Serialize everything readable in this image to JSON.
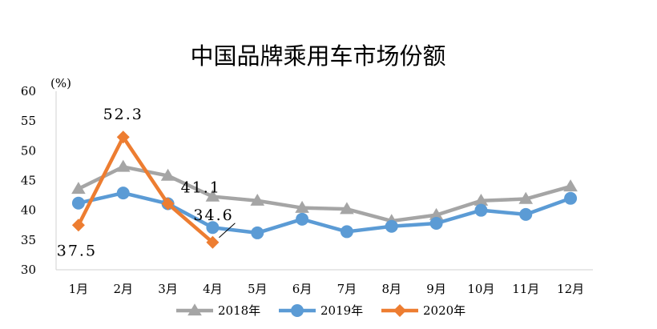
{
  "chart_data": {
    "type": "line",
    "title": "中国品牌乘用车市场份额",
    "ylabel": "(%)",
    "xlabel": "",
    "ylim": [
      30,
      60
    ],
    "yticks": [
      "60",
      "55",
      "50",
      "45",
      "40",
      "35",
      "30"
    ],
    "categories": [
      "1月",
      "2月",
      "3月",
      "4月",
      "5月",
      "6月",
      "7月",
      "8月",
      "9月",
      "10月",
      "11月",
      "12月"
    ],
    "grid": false,
    "legend_position": "bottom",
    "series": [
      {
        "name": "2018年",
        "color": "#a5a5a5",
        "marker": "triangle",
        "values": [
          43.6,
          47.3,
          45.8,
          42.3,
          41.6,
          40.4,
          40.2,
          38.2,
          39.2,
          41.6,
          41.9,
          44.0
        ]
      },
      {
        "name": "2019年",
        "color": "#5b9bd5",
        "marker": "circle",
        "values": [
          41.2,
          42.9,
          41.1,
          37.1,
          36.2,
          38.5,
          36.4,
          37.3,
          37.8,
          40.0,
          39.3,
          42.0
        ]
      },
      {
        "name": "2020年",
        "color": "#ed7d31",
        "marker": "diamond",
        "values": [
          37.5,
          52.3,
          41.1,
          34.6,
          null,
          null,
          null,
          null,
          null,
          null,
          null,
          null
        ]
      }
    ],
    "data_labels": [
      {
        "text": "37.5",
        "series": 2,
        "index": 0
      },
      {
        "text": "52.3",
        "series": 2,
        "index": 1
      },
      {
        "text": "41.1",
        "series": 2,
        "index": 2
      },
      {
        "text": "34.6",
        "series": 2,
        "index": 3
      }
    ]
  }
}
